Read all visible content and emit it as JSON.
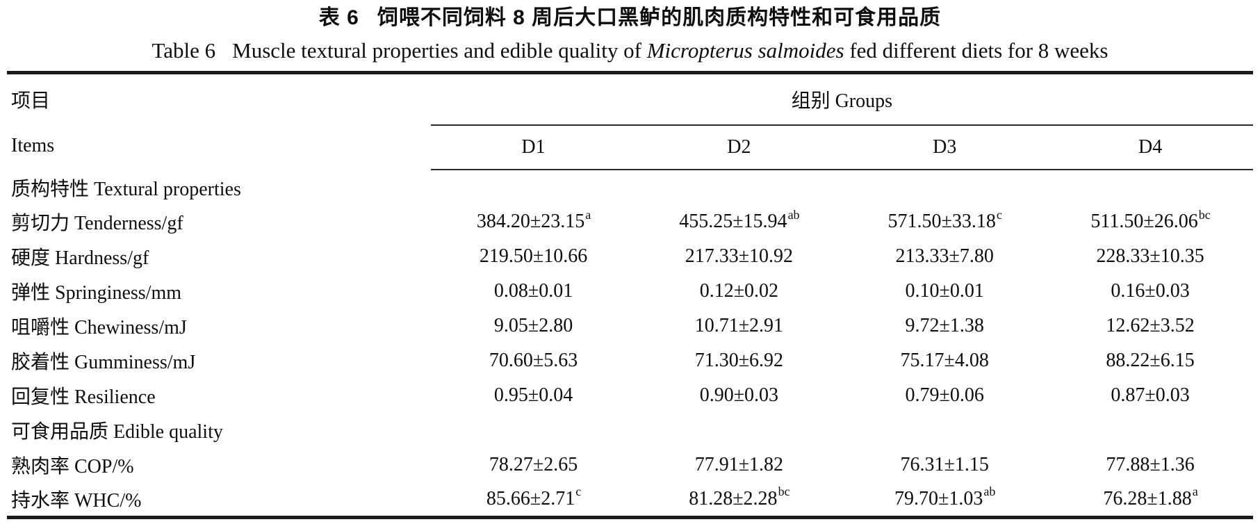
{
  "page": {
    "title_zh_label": "表 6",
    "title_zh_text": "饲喂不同饲料 8 周后大口黑鲈的肌肉质构特性和可食用品质",
    "title_en_label": "Table 6",
    "title_en_prefix": "Muscle textural properties and edible quality of ",
    "title_en_species": "Micropterus salmoides",
    "title_en_suffix": " fed different diets for 8 weeks"
  },
  "table": {
    "item_header_zh": "项目",
    "item_header_en": "Items",
    "group_header": "组别 Groups",
    "columns": [
      "D1",
      "D2",
      "D3",
      "D4"
    ],
    "rows": [
      {
        "type": "section",
        "label": "质构特性 Textural properties"
      },
      {
        "type": "data",
        "label": "剪切力 Tenderness/gf",
        "values": [
          {
            "v": "384.20±23.15",
            "sup": "a"
          },
          {
            "v": "455.25±15.94",
            "sup": "ab"
          },
          {
            "v": "571.50±33.18",
            "sup": "c"
          },
          {
            "v": "511.50±26.06",
            "sup": "bc"
          }
        ]
      },
      {
        "type": "data",
        "label": "硬度 Hardness/gf",
        "values": [
          {
            "v": "219.50±10.66",
            "sup": ""
          },
          {
            "v": "217.33±10.92",
            "sup": ""
          },
          {
            "v": "213.33±7.80",
            "sup": ""
          },
          {
            "v": "228.33±10.35",
            "sup": ""
          }
        ]
      },
      {
        "type": "data",
        "label": "弹性 Springiness/mm",
        "values": [
          {
            "v": "0.08±0.01",
            "sup": ""
          },
          {
            "v": "0.12±0.02",
            "sup": ""
          },
          {
            "v": "0.10±0.01",
            "sup": ""
          },
          {
            "v": "0.16±0.03",
            "sup": ""
          }
        ]
      },
      {
        "type": "data",
        "label": "咀嚼性 Chewiness/mJ",
        "values": [
          {
            "v": "9.05±2.80",
            "sup": ""
          },
          {
            "v": "10.71±2.91",
            "sup": ""
          },
          {
            "v": "9.72±1.38",
            "sup": ""
          },
          {
            "v": "12.62±3.52",
            "sup": ""
          }
        ]
      },
      {
        "type": "data",
        "label": "胶着性 Gumminess/mJ",
        "values": [
          {
            "v": "70.60±5.63",
            "sup": ""
          },
          {
            "v": "71.30±6.92",
            "sup": ""
          },
          {
            "v": "75.17±4.08",
            "sup": ""
          },
          {
            "v": "88.22±6.15",
            "sup": ""
          }
        ]
      },
      {
        "type": "data",
        "label": "回复性 Resilience",
        "values": [
          {
            "v": "0.95±0.04",
            "sup": ""
          },
          {
            "v": "0.90±0.03",
            "sup": ""
          },
          {
            "v": "0.79±0.06",
            "sup": ""
          },
          {
            "v": "0.87±0.03",
            "sup": ""
          }
        ]
      },
      {
        "type": "section",
        "label": "可食用品质 Edible quality"
      },
      {
        "type": "data",
        "label": "熟肉率 COP/%",
        "values": [
          {
            "v": "78.27±2.65",
            "sup": ""
          },
          {
            "v": "77.91±1.82",
            "sup": ""
          },
          {
            "v": "76.31±1.15",
            "sup": ""
          },
          {
            "v": "77.88±1.36",
            "sup": ""
          }
        ]
      },
      {
        "type": "data",
        "label": "持水率 WHC/%",
        "values": [
          {
            "v": "85.66±2.71",
            "sup": "c"
          },
          {
            "v": "81.28±2.28",
            "sup": "bc"
          },
          {
            "v": "79.70±1.03",
            "sup": "ab"
          },
          {
            "v": "76.28±1.88",
            "sup": "a"
          }
        ]
      }
    ]
  }
}
